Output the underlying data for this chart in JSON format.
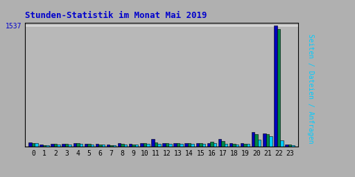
{
  "title": "Stunden-Statistik im Monat Mai 2019",
  "title_color": "#0000cc",
  "background_color": "#b0b0b0",
  "plot_bg_color": "#b8b8b8",
  "ylabel": "Seiten / Dateien / Anfragen",
  "hours": [
    0,
    1,
    2,
    3,
    4,
    5,
    6,
    7,
    8,
    9,
    10,
    11,
    12,
    13,
    14,
    15,
    16,
    17,
    18,
    19,
    20,
    21,
    22,
    23
  ],
  "seiten": [
    60,
    28,
    42,
    42,
    48,
    42,
    38,
    28,
    44,
    36,
    52,
    100,
    50,
    50,
    50,
    50,
    50,
    100,
    44,
    44,
    185,
    170,
    1537,
    32
  ],
  "dateien": [
    52,
    24,
    36,
    36,
    44,
    36,
    34,
    20,
    40,
    30,
    46,
    58,
    44,
    44,
    44,
    44,
    65,
    78,
    40,
    42,
    165,
    160,
    1490,
    30
  ],
  "anfragen": [
    46,
    20,
    32,
    32,
    40,
    32,
    30,
    18,
    34,
    28,
    40,
    38,
    38,
    38,
    38,
    38,
    44,
    40,
    34,
    36,
    90,
    135,
    80,
    24
  ],
  "color_seiten": "#0000bb",
  "color_dateien": "#008844",
  "color_anfragen": "#00ccff",
  "ylim_max": 1537,
  "ytick_label": "1537",
  "bar_width": 0.28,
  "grid_color": "#ffffff",
  "border_color": "#000000",
  "tick_color": "#000000",
  "label_right_seiten": "#0000ff",
  "label_right_dateien": "#008040",
  "label_right_anfragen": "#00ccff"
}
